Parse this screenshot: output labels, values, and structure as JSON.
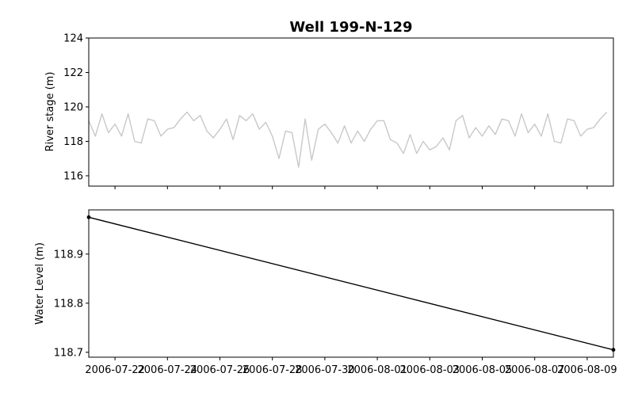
{
  "figure": {
    "title": "Well 199-N-129"
  },
  "chart_data": [
    {
      "type": "line",
      "name": "river-stage",
      "ylabel": "River stage (m)",
      "xlim": [
        "2006-07-21T00:00",
        "2006-08-10T00:00"
      ],
      "ylim": [
        115.4,
        124
      ],
      "yticks": [
        116,
        118,
        120,
        122,
        124
      ],
      "show_x_tick_labels": false,
      "grid": false,
      "line_color": "#c8c8c8",
      "series": [
        {
          "x": [
            "2006-07-21T00:00",
            "2006-07-21T06:00",
            "2006-07-21T12:00",
            "2006-07-21T18:00",
            "2006-07-22T00:00",
            "2006-07-22T06:00",
            "2006-07-22T12:00",
            "2006-07-22T18:00",
            "2006-07-23T00:00",
            "2006-07-23T06:00",
            "2006-07-23T12:00",
            "2006-07-23T18:00",
            "2006-07-24T00:00",
            "2006-07-24T06:00",
            "2006-07-24T12:00",
            "2006-07-24T18:00",
            "2006-07-25T00:00",
            "2006-07-25T06:00",
            "2006-07-25T12:00",
            "2006-07-25T18:00",
            "2006-07-26T00:00",
            "2006-07-26T06:00",
            "2006-07-26T12:00",
            "2006-07-26T18:00",
            "2006-07-27T00:00",
            "2006-07-27T06:00",
            "2006-07-27T12:00",
            "2006-07-27T18:00",
            "2006-07-28T00:00",
            "2006-07-28T06:00",
            "2006-07-28T12:00",
            "2006-07-28T18:00",
            "2006-07-29T00:00",
            "2006-07-29T06:00",
            "2006-07-29T12:00",
            "2006-07-29T18:00",
            "2006-07-30T00:00",
            "2006-07-30T06:00",
            "2006-07-30T12:00",
            "2006-07-30T18:00",
            "2006-07-31T00:00",
            "2006-07-31T06:00",
            "2006-07-31T12:00",
            "2006-07-31T18:00",
            "2006-08-01T00:00",
            "2006-08-01T06:00",
            "2006-08-01T12:00",
            "2006-08-01T18:00",
            "2006-08-02T00:00",
            "2006-08-02T06:00",
            "2006-08-02T12:00",
            "2006-08-02T18:00",
            "2006-08-03T00:00",
            "2006-08-03T06:00",
            "2006-08-03T12:00",
            "2006-08-03T18:00",
            "2006-08-04T00:00",
            "2006-08-04T06:00",
            "2006-08-04T12:00",
            "2006-08-04T18:00",
            "2006-08-05T00:00",
            "2006-08-05T06:00",
            "2006-08-05T12:00",
            "2006-08-05T18:00",
            "2006-08-06T00:00",
            "2006-08-06T06:00",
            "2006-08-06T12:00",
            "2006-08-06T18:00",
            "2006-08-07T00:00",
            "2006-08-07T06:00",
            "2006-08-07T12:00",
            "2006-08-07T18:00",
            "2006-08-08T00:00",
            "2006-08-08T06:00",
            "2006-08-08T12:00",
            "2006-08-08T18:00",
            "2006-08-09T00:00",
            "2006-08-09T06:00",
            "2006-08-09T12:00",
            "2006-08-09T18:00"
          ],
          "y": [
            119.2,
            118.3,
            119.6,
            118.5,
            119.0,
            118.3,
            119.6,
            118.0,
            117.9,
            119.3,
            119.2,
            118.3,
            118.7,
            118.8,
            119.3,
            119.7,
            119.2,
            119.5,
            118.6,
            118.2,
            118.7,
            119.3,
            118.1,
            119.5,
            119.2,
            119.6,
            118.7,
            119.1,
            118.3,
            117.0,
            118.6,
            118.5,
            116.5,
            119.3,
            116.9,
            118.7,
            119.0,
            118.5,
            117.9,
            118.9,
            117.9,
            118.6,
            118.0,
            118.7,
            119.2,
            119.2,
            118.1,
            117.9,
            117.3,
            118.4,
            117.3,
            118.0,
            117.5,
            117.7,
            118.2,
            117.5,
            119.2,
            119.5,
            118.2,
            118.8,
            118.3,
            118.9,
            118.4,
            119.3,
            119.2,
            118.3,
            119.6,
            118.5,
            119.0,
            118.3,
            119.6,
            118.0,
            117.9,
            119.3,
            119.2,
            118.3,
            118.7,
            118.8,
            119.3,
            119.7
          ]
        }
      ]
    },
    {
      "type": "line",
      "name": "water-level",
      "ylabel": "Water Level (m)",
      "xlim": [
        "2006-07-21T00:00",
        "2006-08-10T00:00"
      ],
      "ylim": [
        118.69,
        118.99
      ],
      "yticks": [
        118.7,
        118.8,
        118.9
      ],
      "xticks": [
        "2006-07-22",
        "2006-07-24",
        "2006-07-26",
        "2006-07-28",
        "2006-07-30",
        "2006-08-01",
        "2006-08-03",
        "2006-08-05",
        "2006-08-07",
        "2006-08-09"
      ],
      "xtick_labels": [
        "2006-07-22",
        "2006-07-24",
        "2006-07-26",
        "2006-07-28",
        "2006-07-30",
        "2006-08-01",
        "2006-08-03",
        "2006-08-05",
        "2006-08-07",
        "2006-08-09"
      ],
      "grid": false,
      "line_color": "#000000",
      "series": [
        {
          "x": [
            "2006-07-21T00:00",
            "2006-08-10T00:00"
          ],
          "y": [
            118.975,
            118.705
          ],
          "markers": true
        }
      ]
    }
  ]
}
